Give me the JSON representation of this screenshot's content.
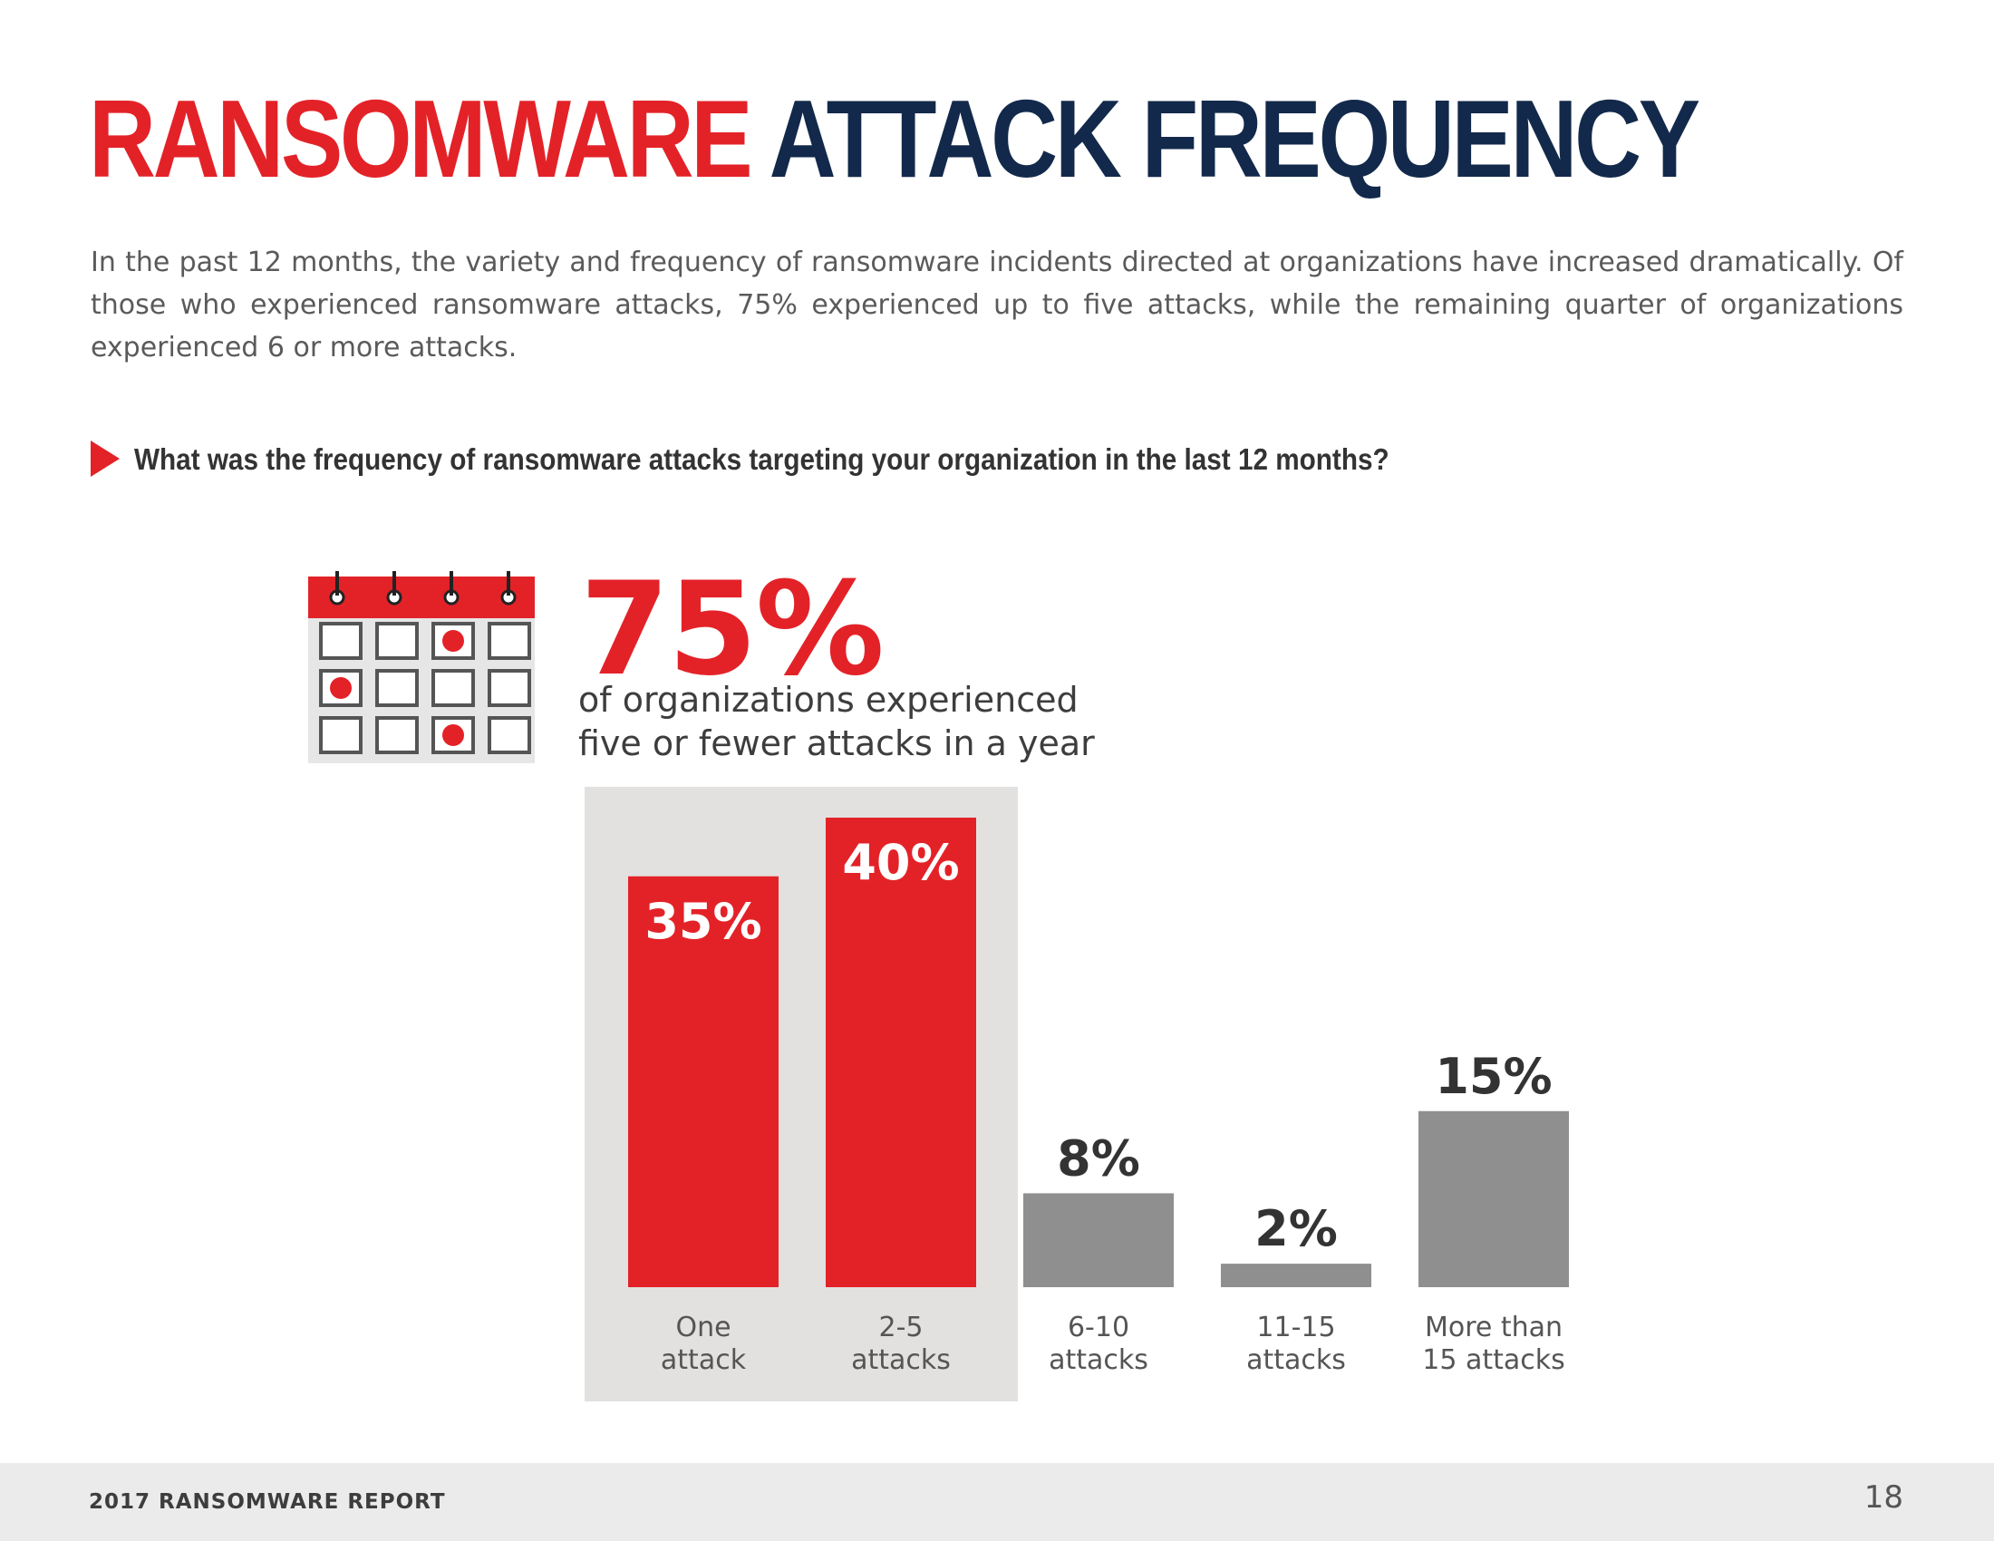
{
  "title": {
    "part1": "RANSOMWARE",
    "part2": "ATTACK FREQUENCY"
  },
  "intro": "In the past 12 months, the variety and frequency of ransomware incidents directed at organizations have increased dramatically. Of those who experienced ransomware attacks, 75% experienced up to five attacks, while the remaining quarter of organizations experienced 6 or more attacks.",
  "question": "What was the frequency of ransomware attacks targeting your organization in the last 12 months?",
  "highlight": {
    "value": "75%",
    "line1": "of organizations experienced",
    "line2": "five or fewer attacks in a year"
  },
  "footer": {
    "report": "2017 RANSOMWARE REPORT",
    "page": "18"
  },
  "colors": {
    "red": "#e32228",
    "navy": "#13294b",
    "gray_bar": "#8f8f8f",
    "highlight_bg": "#e2e1e0"
  },
  "icons": [
    "calendar-icon",
    "arrow-right-icon"
  ],
  "chart_data": {
    "type": "bar",
    "title": "",
    "xlabel": "",
    "ylabel": "",
    "categories": [
      [
        "One",
        "attack"
      ],
      [
        "2-5",
        "attacks"
      ],
      [
        "6-10",
        "attacks"
      ],
      [
        "11-15",
        "attacks"
      ],
      [
        "More than",
        "15 attacks"
      ]
    ],
    "values": [
      35,
      40,
      8,
      2,
      15
    ],
    "value_labels": [
      "35%",
      "40%",
      "8%",
      "2%",
      "15%"
    ],
    "highlighted": [
      true,
      true,
      false,
      false,
      false
    ],
    "unit": "%",
    "ylim": [
      0,
      40
    ],
    "grid": false,
    "legend": "none"
  }
}
